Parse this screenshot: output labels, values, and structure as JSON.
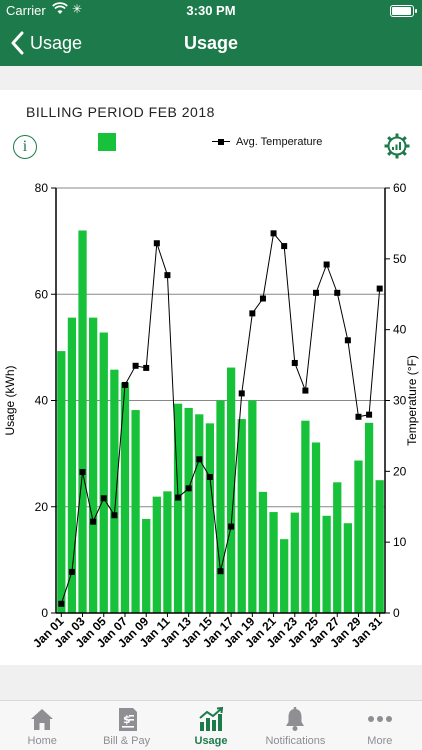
{
  "status_bar": {
    "carrier": "Carrier",
    "time": "3:30 PM"
  },
  "nav": {
    "back_label": "Usage",
    "title": "Usage"
  },
  "billing_period": "BILLING PERIOD FEB 2018",
  "legend": {
    "usage_swatch_color": "#17c23a",
    "temperature_label": "Avg. Temperature"
  },
  "chart_data": {
    "type": "bar",
    "categories": [
      "Jan 01",
      "Jan 02",
      "Jan 03",
      "Jan 04",
      "Jan 05",
      "Jan 06",
      "Jan 07",
      "Jan 08",
      "Jan 09",
      "Jan 10",
      "Jan 11",
      "Jan 12",
      "Jan 13",
      "Jan 14",
      "Jan 15",
      "Jan 16",
      "Jan 17",
      "Jan 18",
      "Jan 19",
      "Jan 20",
      "Jan 21",
      "Jan 22",
      "Jan 23",
      "Jan 24",
      "Jan 25",
      "Jan 26",
      "Jan 27",
      "Jan 28",
      "Jan 29",
      "Jan 30",
      "Jan 31"
    ],
    "tick_labels": [
      "Jan 01",
      "Jan 03",
      "Jan 05",
      "Jan 07",
      "Jan 09",
      "Jan 11",
      "Jan 13",
      "Jan 15",
      "Jan 17",
      "Jan 19",
      "Jan 21",
      "Jan 23",
      "Jan 25",
      "Jan 27",
      "Jan 29",
      "Jan 31"
    ],
    "ylabel": "Usage (kWh)",
    "y2label": "Temperature (°F)",
    "ylim": [
      0,
      80
    ],
    "yticks": [
      0,
      20,
      40,
      60,
      80
    ],
    "y2lim": [
      0,
      60
    ],
    "y2ticks": [
      0,
      10,
      20,
      30,
      40,
      50,
      60
    ],
    "grid": true,
    "bar_color": "#17c23a",
    "series": [
      {
        "type": "bar",
        "axis": "left",
        "values": [
          49.3,
          55.6,
          72.0,
          55.6,
          52.8,
          45.8,
          43.4,
          38.2,
          17.7,
          21.9,
          22.9,
          39.4,
          38.6,
          37.4,
          35.7,
          40.0,
          46.2,
          36.5,
          40.0,
          22.8,
          19.0,
          13.9,
          18.9,
          36.2,
          32.1,
          18.3,
          24.6,
          16.9,
          28.7,
          35.8,
          25.0
        ]
      },
      {
        "type": "line",
        "axis": "right",
        "name": "Avg. Temperature",
        "values": [
          1.3,
          5.8,
          19.9,
          12.9,
          16.2,
          13.8,
          32.2,
          34.9,
          34.6,
          52.2,
          47.7,
          16.3,
          17.6,
          21.7,
          19.2,
          5.9,
          12.2,
          31.0,
          42.3,
          44.4,
          53.6,
          51.8,
          35.3,
          31.4,
          45.2,
          49.2,
          45.2,
          38.5,
          27.7,
          28.0,
          45.8
        ]
      }
    ]
  },
  "tabs": [
    {
      "label": "Home",
      "icon": "home-icon"
    },
    {
      "label": "Bill & Pay",
      "icon": "bill-icon"
    },
    {
      "label": "Usage",
      "icon": "usage-chart-icon",
      "active": true
    },
    {
      "label": "Notifications",
      "icon": "bell-icon"
    },
    {
      "label": "More",
      "icon": "more-icon"
    }
  ]
}
